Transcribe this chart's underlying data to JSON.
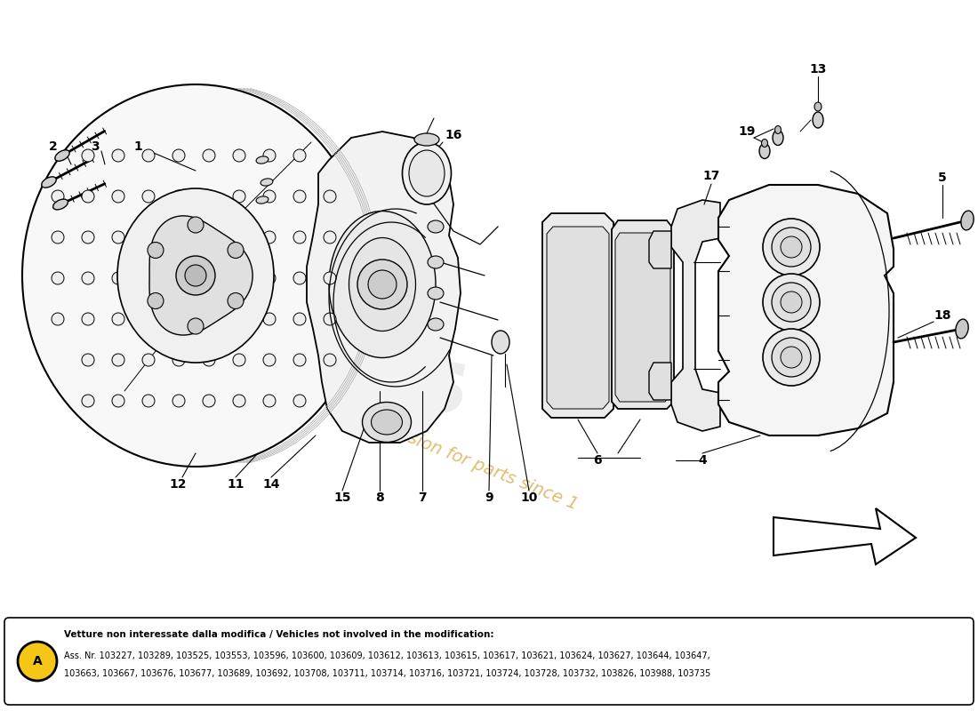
{
  "background_color": "#ffffff",
  "watermark_color": "#d4a840",
  "footer_box": {
    "label": "A",
    "label_bg": "#f5c518",
    "line1_bold": "Vetture non interessate dalla modifica / Vehicles not involved in the modification:",
    "line2": "Ass. Nr. 103227, 103289, 103525, 103553, 103596, 103600, 103609, 103612, 103613, 103615, 103617, 103621, 103624, 103627, 103644, 103647,",
    "line3": "103663, 103667, 103676, 103677, 103689, 103692, 103708, 103711, 103714, 103716, 103721, 103724, 103728, 103732, 103826, 103988, 103735"
  }
}
